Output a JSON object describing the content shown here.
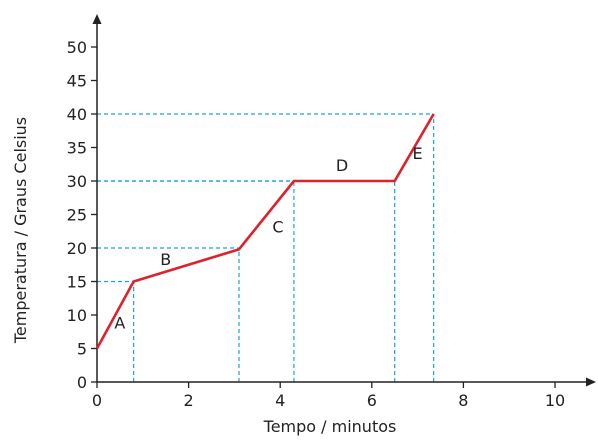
{
  "chart_data": {
    "type": "line",
    "xlabel": "Tempo / minutos",
    "ylabel": "Temperatura / Graus Celsius",
    "xlim": [
      0,
      11
    ],
    "ylim": [
      0,
      55
    ],
    "x_ticks": [
      0,
      2,
      4,
      6,
      8,
      10
    ],
    "y_ticks": [
      0,
      5,
      10,
      15,
      20,
      25,
      30,
      35,
      40,
      45,
      50
    ],
    "grid": false,
    "series": [
      {
        "color": "#e0202a",
        "points": [
          {
            "x": 0,
            "y": 5
          },
          {
            "x": 0.8,
            "y": 15
          },
          {
            "x": 3.1,
            "y": 19.8
          },
          {
            "x": 4.3,
            "y": 30
          },
          {
            "x": 6.5,
            "y": 30
          },
          {
            "x": 7.35,
            "y": 40
          }
        ]
      }
    ],
    "reference_lines": [
      {
        "x": 0.8,
        "y": 15
      },
      {
        "x": 3.1,
        "y": 20
      },
      {
        "x": 4.3,
        "y": 30
      },
      {
        "x": 6.5,
        "y": 30
      },
      {
        "x": 7.35,
        "y": 40
      }
    ],
    "reference_color": "#1aa3d9",
    "segment_labels": [
      {
        "text": "A",
        "x": 0.5,
        "y": 8
      },
      {
        "text": "B",
        "x": 1.5,
        "y": 17.5
      },
      {
        "text": "C",
        "x": 3.95,
        "y": 22.3
      },
      {
        "text": "D",
        "x": 5.35,
        "y": 31.5
      },
      {
        "text": "E",
        "x": 7.0,
        "y": 33.3
      }
    ]
  }
}
